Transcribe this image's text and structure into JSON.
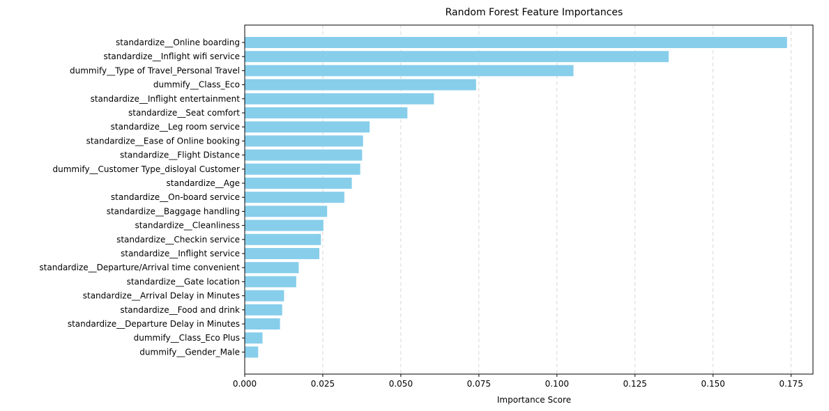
{
  "chart_data": {
    "type": "bar",
    "orientation": "horizontal",
    "title": "Random Forest Feature Importances",
    "xlabel": "Importance Score",
    "ylabel": "",
    "xlim": [
      0,
      0.182
    ],
    "xticks": [
      0.0,
      0.025,
      0.05,
      0.075,
      0.1,
      0.125,
      0.15,
      0.175
    ],
    "xtick_labels": [
      "0.000",
      "0.025",
      "0.050",
      "0.075",
      "0.100",
      "0.125",
      "0.150",
      "0.175"
    ],
    "grid": "x-dashed",
    "bar_color": "#87ceeb",
    "categories": [
      "standardize__Online boarding",
      "standardize__Inflight wifi service",
      "dummify__Type of Travel_Personal Travel",
      "dummify__Class_Eco",
      "standardize__Inflight entertainment",
      "standardize__Seat comfort",
      "standardize__Leg room service",
      "standardize__Ease of Online booking",
      "standardize__Flight Distance",
      "dummify__Customer Type_disloyal Customer",
      "standardize__Age",
      "standardize__On-board service",
      "standardize__Baggage handling",
      "standardize__Cleanliness",
      "standardize__Checkin service",
      "standardize__Inflight service",
      "standardize__Departure/Arrival time convenient",
      "standardize__Gate location",
      "standardize__Arrival Delay in Minutes",
      "standardize__Food and drink",
      "standardize__Departure Delay in Minutes",
      "dummify__Class_Eco Plus",
      "dummify__Gender_Male"
    ],
    "values": [
      0.1737,
      0.1358,
      0.1053,
      0.0741,
      0.0606,
      0.0521,
      0.04,
      0.0379,
      0.0376,
      0.037,
      0.0343,
      0.0319,
      0.0264,
      0.0252,
      0.0244,
      0.0239,
      0.0173,
      0.0165,
      0.0126,
      0.012,
      0.0113,
      0.0057,
      0.0043
    ]
  }
}
